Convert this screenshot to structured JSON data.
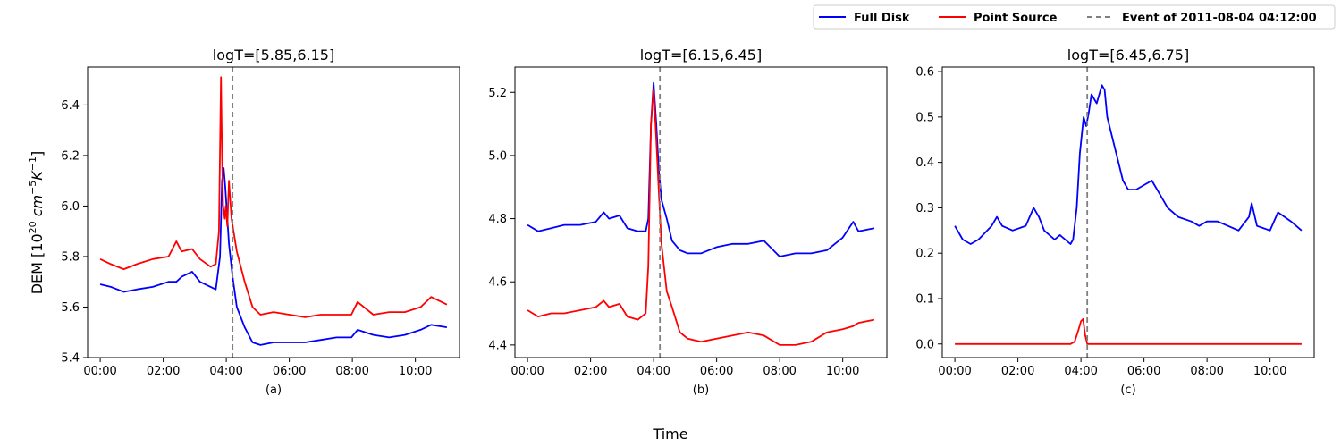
{
  "figure": {
    "xlabel": "Time",
    "ylabel": "DEM [10",
    "ylabel_sup1": "20",
    "ylabel_mid": " cm",
    "ylabel_sup2": "−5",
    "ylabel_k": "K",
    "ylabel_sup3": "−1",
    "ylabel_end": "]"
  },
  "legend": {
    "placement": "top-right",
    "items": [
      {
        "label": "Full Disk",
        "color": "#0000ff",
        "style": "solid"
      },
      {
        "label": "Point Source",
        "color": "#ff0000",
        "style": "solid"
      },
      {
        "label": "Event of 2011-08-04 04:12:00",
        "color": "#808080",
        "style": "dashed"
      }
    ]
  },
  "chart_data": [
    {
      "type": "line",
      "title": "logT=[5.85,6.15]",
      "caption": "(a)",
      "xlim": [
        "23:36",
        "11:24"
      ],
      "ylim": [
        5.4,
        6.55
      ],
      "x_ticks": [
        "00:00",
        "02:00",
        "04:00",
        "06:00",
        "08:00",
        "10:00"
      ],
      "y_ticks": [
        "5.4",
        "5.6",
        "5.8",
        "6.0",
        "6.2",
        "6.4"
      ],
      "event_time": "04:12",
      "series": [
        {
          "name": "Full Disk",
          "color": "#0000ff",
          "x": [
            "00:00",
            "00:20",
            "00:45",
            "01:10",
            "01:40",
            "02:10",
            "02:25",
            "02:35",
            "02:55",
            "03:10",
            "03:30",
            "03:40",
            "03:48",
            "03:52",
            "03:55",
            "03:58",
            "04:02",
            "04:05",
            "04:12",
            "04:20",
            "04:35",
            "04:50",
            "05:05",
            "05:30",
            "06:00",
            "06:30",
            "07:00",
            "07:30",
            "07:58",
            "08:10",
            "08:40",
            "09:10",
            "09:40",
            "10:10",
            "10:30",
            "11:00"
          ],
          "y": [
            5.69,
            5.68,
            5.66,
            5.67,
            5.68,
            5.7,
            5.7,
            5.72,
            5.74,
            5.7,
            5.68,
            5.67,
            5.8,
            6.1,
            6.15,
            6.08,
            5.95,
            5.85,
            5.72,
            5.6,
            5.52,
            5.46,
            5.45,
            5.46,
            5.46,
            5.46,
            5.47,
            5.48,
            5.48,
            5.51,
            5.49,
            5.48,
            5.49,
            5.51,
            5.53,
            5.52
          ]
        },
        {
          "name": "Point Source",
          "color": "#ff0000",
          "x": [
            "00:00",
            "00:20",
            "00:45",
            "01:10",
            "01:40",
            "02:10",
            "02:25",
            "02:35",
            "02:55",
            "03:10",
            "03:30",
            "03:40",
            "03:46",
            "03:50",
            "03:52",
            "03:54",
            "03:57",
            "03:59",
            "04:02",
            "04:05",
            "04:10",
            "04:20",
            "04:35",
            "04:50",
            "05:05",
            "05:30",
            "06:00",
            "06:30",
            "07:00",
            "07:30",
            "07:58",
            "08:10",
            "08:40",
            "09:10",
            "09:40",
            "10:10",
            "10:30",
            "11:00"
          ],
          "y": [
            5.79,
            5.77,
            5.75,
            5.77,
            5.79,
            5.8,
            5.86,
            5.82,
            5.83,
            5.79,
            5.76,
            5.77,
            5.9,
            6.51,
            6.2,
            6.0,
            5.95,
            6.0,
            5.92,
            6.1,
            5.95,
            5.82,
            5.7,
            5.6,
            5.57,
            5.58,
            5.57,
            5.56,
            5.57,
            5.57,
            5.57,
            5.62,
            5.57,
            5.58,
            5.58,
            5.6,
            5.64,
            5.61
          ]
        }
      ]
    },
    {
      "type": "line",
      "title": "logT=[6.15,6.45]",
      "caption": "(b)",
      "xlim": [
        "23:36",
        "11:24"
      ],
      "ylim": [
        4.36,
        5.28
      ],
      "x_ticks": [
        "00:00",
        "02:00",
        "04:00",
        "06:00",
        "08:00",
        "10:00"
      ],
      "y_ticks": [
        "4.4",
        "4.6",
        "4.8",
        "5.0",
        "5.2"
      ],
      "event_time": "04:12",
      "series": [
        {
          "name": "Full Disk",
          "color": "#0000ff",
          "x": [
            "00:00",
            "00:20",
            "00:45",
            "01:10",
            "01:40",
            "02:10",
            "02:25",
            "02:35",
            "02:55",
            "03:10",
            "03:30",
            "03:45",
            "03:50",
            "03:55",
            "04:00",
            "04:05",
            "04:10",
            "04:15",
            "04:25",
            "04:35",
            "04:50",
            "05:05",
            "05:30",
            "06:00",
            "06:30",
            "07:00",
            "07:30",
            "08:00",
            "08:30",
            "09:00",
            "09:30",
            "10:00",
            "10:20",
            "10:30",
            "11:00"
          ],
          "y": [
            4.78,
            4.76,
            4.77,
            4.78,
            4.78,
            4.79,
            4.82,
            4.8,
            4.81,
            4.77,
            4.76,
            4.76,
            4.8,
            5.1,
            5.23,
            5.1,
            4.95,
            4.86,
            4.8,
            4.73,
            4.7,
            4.69,
            4.69,
            4.71,
            4.72,
            4.72,
            4.73,
            4.68,
            4.69,
            4.69,
            4.7,
            4.74,
            4.79,
            4.76,
            4.77
          ]
        },
        {
          "name": "Point Source",
          "color": "#ff0000",
          "x": [
            "00:00",
            "00:20",
            "00:45",
            "01:10",
            "01:40",
            "02:10",
            "02:25",
            "02:35",
            "02:55",
            "03:10",
            "03:30",
            "03:45",
            "03:50",
            "03:55",
            "04:00",
            "04:05",
            "04:10",
            "04:15",
            "04:25",
            "04:35",
            "04:50",
            "05:05",
            "05:30",
            "06:00",
            "06:30",
            "07:00",
            "07:30",
            "08:00",
            "08:30",
            "09:00",
            "09:30",
            "10:00",
            "10:20",
            "10:30",
            "11:00"
          ],
          "y": [
            4.51,
            4.49,
            4.5,
            4.5,
            4.51,
            4.52,
            4.54,
            4.52,
            4.53,
            4.49,
            4.48,
            4.5,
            4.65,
            5.1,
            5.21,
            5.05,
            4.88,
            4.72,
            4.57,
            4.52,
            4.44,
            4.42,
            4.41,
            4.42,
            4.43,
            4.44,
            4.43,
            4.4,
            4.4,
            4.41,
            4.44,
            4.45,
            4.46,
            4.47,
            4.48
          ]
        }
      ]
    },
    {
      "type": "line",
      "title": "logT=[6.45,6.75]",
      "caption": "(c)",
      "xlim": [
        "23:36",
        "11:24"
      ],
      "ylim": [
        -0.03,
        0.61
      ],
      "x_ticks": [
        "00:00",
        "02:00",
        "04:00",
        "06:00",
        "08:00",
        "10:00"
      ],
      "y_ticks": [
        "0.0",
        "0.1",
        "0.2",
        "0.3",
        "0.4",
        "0.5",
        "0.6"
      ],
      "event_time": "04:12",
      "series": [
        {
          "name": "Full Disk",
          "color": "#0000ff",
          "x": [
            "00:00",
            "00:15",
            "00:30",
            "00:45",
            "01:10",
            "01:20",
            "01:30",
            "01:50",
            "02:15",
            "02:30",
            "02:40",
            "02:50",
            "03:10",
            "03:20",
            "03:40",
            "03:45",
            "03:52",
            "03:58",
            "04:05",
            "04:10",
            "04:15",
            "04:20",
            "04:30",
            "04:40",
            "04:45",
            "04:50",
            "05:05",
            "05:20",
            "05:30",
            "05:45",
            "06:00",
            "06:15",
            "06:30",
            "06:45",
            "07:05",
            "07:30",
            "07:45",
            "08:00",
            "08:20",
            "08:40",
            "09:00",
            "09:20",
            "09:25",
            "09:35",
            "10:00",
            "10:15",
            "10:40",
            "11:00"
          ],
          "y": [
            0.26,
            0.23,
            0.22,
            0.23,
            0.26,
            0.28,
            0.26,
            0.25,
            0.26,
            0.3,
            0.28,
            0.25,
            0.23,
            0.24,
            0.22,
            0.23,
            0.3,
            0.42,
            0.5,
            0.48,
            0.51,
            0.55,
            0.53,
            0.57,
            0.56,
            0.5,
            0.43,
            0.36,
            0.34,
            0.34,
            0.35,
            0.36,
            0.33,
            0.3,
            0.28,
            0.27,
            0.26,
            0.27,
            0.27,
            0.26,
            0.25,
            0.28,
            0.31,
            0.26,
            0.25,
            0.29,
            0.27,
            0.25
          ]
        },
        {
          "name": "Point Source",
          "color": "#ff0000",
          "x": [
            "00:00",
            "03:40",
            "03:48",
            "03:55",
            "04:00",
            "04:04",
            "04:08",
            "04:12",
            "11:00"
          ],
          "y": [
            0.0,
            0.0,
            0.005,
            0.03,
            0.05,
            0.055,
            0.02,
            0.0,
            0.0
          ]
        }
      ]
    }
  ]
}
